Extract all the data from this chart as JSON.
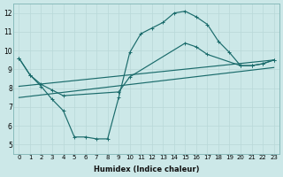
{
  "xlabel": "Humidex (Indice chaleur)",
  "xlim": [
    -0.5,
    23.5
  ],
  "ylim": [
    4.5,
    12.5
  ],
  "xticks": [
    0,
    1,
    2,
    3,
    4,
    5,
    6,
    7,
    8,
    9,
    10,
    11,
    12,
    13,
    14,
    15,
    16,
    17,
    18,
    19,
    20,
    21,
    22,
    23
  ],
  "yticks": [
    5,
    6,
    7,
    8,
    9,
    10,
    11,
    12
  ],
  "bg_color": "#cce8e8",
  "line_color": "#1a6b6b",
  "grid_color": "#b8d8d8",
  "line1_x": [
    0,
    1,
    2,
    3,
    4,
    5,
    6,
    7,
    8,
    9,
    10,
    11,
    12,
    13,
    14,
    15,
    16,
    17,
    18,
    19,
    20,
    21,
    22,
    23
  ],
  "line1_y": [
    9.6,
    8.7,
    8.1,
    7.4,
    6.8,
    5.4,
    5.4,
    5.3,
    5.3,
    7.5,
    9.9,
    10.9,
    11.2,
    11.5,
    12.0,
    12.1,
    11.8,
    11.4,
    10.5,
    9.9,
    9.2,
    9.2,
    9.3,
    9.5
  ],
  "line2_x": [
    0,
    23
  ],
  "line2_y": [
    8.1,
    9.5
  ],
  "line3_x": [
    0,
    23
  ],
  "line3_y": [
    7.5,
    9.1
  ],
  "line4_x": [
    0,
    1,
    2,
    3,
    4,
    9,
    10,
    15,
    16,
    17,
    20,
    21,
    22,
    23
  ],
  "line4_y": [
    9.6,
    8.7,
    8.2,
    7.9,
    7.6,
    7.8,
    8.6,
    10.4,
    10.2,
    9.8,
    9.2,
    9.2,
    9.3,
    9.5
  ]
}
